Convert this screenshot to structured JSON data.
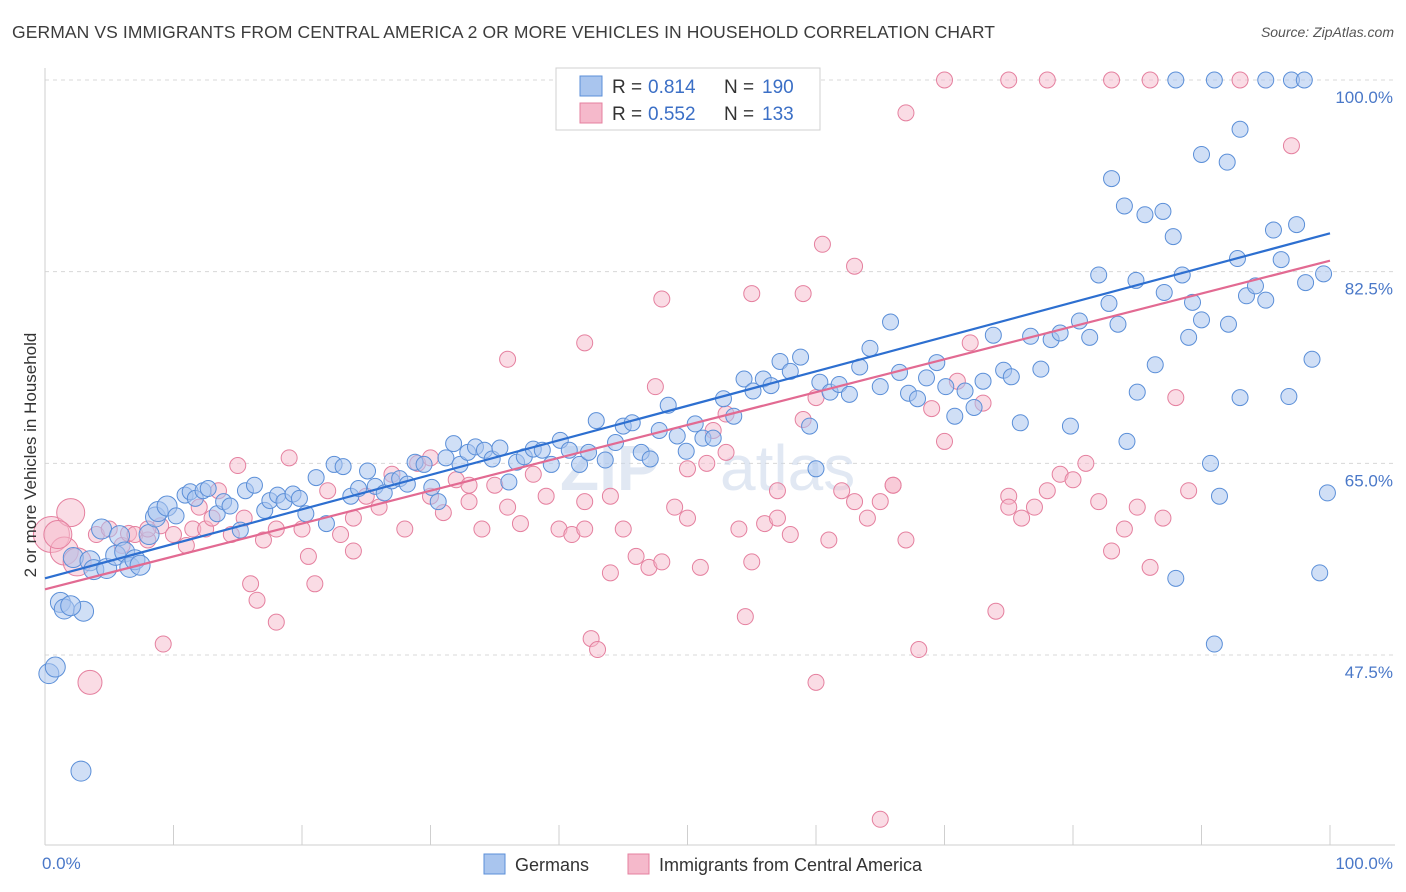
{
  "header": {
    "title": "GERMAN VS IMMIGRANTS FROM CENTRAL AMERICA 2 OR MORE VEHICLES IN HOUSEHOLD CORRELATION CHART",
    "source": "Source: ZipAtlas.com"
  },
  "watermark": {
    "zip": "ZIP",
    "atlas": "atlas"
  },
  "legend": {
    "r_label": "R =",
    "n_label": "N =",
    "rows": [
      {
        "r": "0.814",
        "n": "190"
      },
      {
        "r": "0.552",
        "n": "133"
      }
    ]
  },
  "colors": {
    "blue_fill": "#a9c5ee",
    "blue_stroke": "#5b8fd8",
    "blue_line": "#2d6fd0",
    "pink_fill": "#f5b9cb",
    "pink_stroke": "#e5809f",
    "pink_line": "#e26a92",
    "grid": "#d8d8d8",
    "tick_label": "#4a78c8"
  },
  "chart_data": {
    "type": "scatter",
    "title": "GERMAN VS IMMIGRANTS FROM CENTRAL AMERICA 2 OR MORE VEHICLES IN HOUSEHOLD CORRELATION CHART",
    "xlabel": "",
    "ylabel": "2 or more Vehicles in Household",
    "xlim": [
      0,
      100
    ],
    "ylim": [
      33,
      102
    ],
    "x_tick_labels": [
      "0.0%",
      "100.0%"
    ],
    "y_ticks": [
      47.5,
      65.0,
      82.5,
      100.0
    ],
    "y_tick_labels": [
      "47.5%",
      "65.0%",
      "82.5%",
      "100.0%"
    ],
    "grid": "horizontal dashed",
    "legend_position": "top-center",
    "series": [
      {
        "name": "Germans",
        "r": 0.814,
        "n": 190,
        "trend": {
          "x": [
            0,
            100
          ],
          "y": [
            54.5,
            86.0
          ]
        },
        "points": [
          [
            0.3,
            45.8
          ],
          [
            0.8,
            46.4
          ],
          [
            1.2,
            52.3
          ],
          [
            1.5,
            51.7
          ],
          [
            2.2,
            56.4
          ],
          [
            2.8,
            36.9
          ],
          [
            3.5,
            56.1
          ],
          [
            3.8,
            55.3
          ],
          [
            4.4,
            59.0
          ],
          [
            4.8,
            55.4
          ],
          [
            5.5,
            56.6
          ],
          [
            5.8,
            58.4
          ],
          [
            6.2,
            56.9
          ],
          [
            6.6,
            55.5
          ],
          [
            7.0,
            56.2
          ],
          [
            7.4,
            55.7
          ],
          [
            8.1,
            58.5
          ],
          [
            8.6,
            60.1
          ],
          [
            8.8,
            60.6
          ],
          [
            9.5,
            61.1
          ],
          [
            10.2,
            60.2
          ],
          [
            10.9,
            62.1
          ],
          [
            11.3,
            62.4
          ],
          [
            11.7,
            61.8
          ],
          [
            12.3,
            62.5
          ],
          [
            12.7,
            62.7
          ],
          [
            13.4,
            60.4
          ],
          [
            13.9,
            61.5
          ],
          [
            14.4,
            61.1
          ],
          [
            15.2,
            58.9
          ],
          [
            15.6,
            62.5
          ],
          [
            16.3,
            63.0
          ],
          [
            17.1,
            60.7
          ],
          [
            17.5,
            61.6
          ],
          [
            18.1,
            62.1
          ],
          [
            18.6,
            61.5
          ],
          [
            19.3,
            62.2
          ],
          [
            19.8,
            61.8
          ],
          [
            20.3,
            60.4
          ],
          [
            21.1,
            63.7
          ],
          [
            21.9,
            59.5
          ],
          [
            22.5,
            64.9
          ],
          [
            23.2,
            64.7
          ],
          [
            23.8,
            62.0
          ],
          [
            24.4,
            62.7
          ],
          [
            25.1,
            64.3
          ],
          [
            25.7,
            62.9
          ],
          [
            26.4,
            62.3
          ],
          [
            27.0,
            63.4
          ],
          [
            27.6,
            63.6
          ],
          [
            28.2,
            63.1
          ],
          [
            28.8,
            65.1
          ],
          [
            29.5,
            64.9
          ],
          [
            30.1,
            62.8
          ],
          [
            30.6,
            61.5
          ],
          [
            31.2,
            65.5
          ],
          [
            31.8,
            66.8
          ],
          [
            32.3,
            64.9
          ],
          [
            32.9,
            66.0
          ],
          [
            33.5,
            66.5
          ],
          [
            34.2,
            66.2
          ],
          [
            34.8,
            65.4
          ],
          [
            35.4,
            66.4
          ],
          [
            36.1,
            63.3
          ],
          [
            36.7,
            65.1
          ],
          [
            37.3,
            65.6
          ],
          [
            38.0,
            66.3
          ],
          [
            38.7,
            66.2
          ],
          [
            39.4,
            64.9
          ],
          [
            40.1,
            67.1
          ],
          [
            40.8,
            66.2
          ],
          [
            41.6,
            64.9
          ],
          [
            42.3,
            66.0
          ],
          [
            42.9,
            68.9
          ],
          [
            43.6,
            65.3
          ],
          [
            44.4,
            66.9
          ],
          [
            45.0,
            68.4
          ],
          [
            45.7,
            68.7
          ],
          [
            46.4,
            66.0
          ],
          [
            47.1,
            65.4
          ],
          [
            47.8,
            68.0
          ],
          [
            48.5,
            70.3
          ],
          [
            49.2,
            67.5
          ],
          [
            49.9,
            66.1
          ],
          [
            50.6,
            68.6
          ],
          [
            51.2,
            67.3
          ],
          [
            52.0,
            67.3
          ],
          [
            52.8,
            70.9
          ],
          [
            53.6,
            69.3
          ],
          [
            54.4,
            72.7
          ],
          [
            55.1,
            71.6
          ],
          [
            55.9,
            72.7
          ],
          [
            56.5,
            72.1
          ],
          [
            57.2,
            74.3
          ],
          [
            58.0,
            73.4
          ],
          [
            58.8,
            74.7
          ],
          [
            59.5,
            68.4
          ],
          [
            60.3,
            72.4
          ],
          [
            61.1,
            71.5
          ],
          [
            61.8,
            72.2
          ],
          [
            62.6,
            71.3
          ],
          [
            63.4,
            73.8
          ],
          [
            64.2,
            75.5
          ],
          [
            65.0,
            72.0
          ],
          [
            65.8,
            77.9
          ],
          [
            66.5,
            73.3
          ],
          [
            67.2,
            71.4
          ],
          [
            67.9,
            70.9
          ],
          [
            68.6,
            72.8
          ],
          [
            69.4,
            74.2
          ],
          [
            70.1,
            72.0
          ],
          [
            70.8,
            69.3
          ],
          [
            71.6,
            71.6
          ],
          [
            72.3,
            70.1
          ],
          [
            73.0,
            72.5
          ],
          [
            73.8,
            76.7
          ],
          [
            74.6,
            73.5
          ],
          [
            75.2,
            72.9
          ],
          [
            75.9,
            68.7
          ],
          [
            76.7,
            76.6
          ],
          [
            77.5,
            73.6
          ],
          [
            78.3,
            76.3
          ],
          [
            79.0,
            76.9
          ],
          [
            79.8,
            68.4
          ],
          [
            80.5,
            78.0
          ],
          [
            81.3,
            76.5
          ],
          [
            82.0,
            82.2
          ],
          [
            82.8,
            79.6
          ],
          [
            83.5,
            77.7
          ],
          [
            84.2,
            67.0
          ],
          [
            84.9,
            81.7
          ],
          [
            85.6,
            87.7
          ],
          [
            86.4,
            74.0
          ],
          [
            87.1,
            80.6
          ],
          [
            87.8,
            85.7
          ],
          [
            88.5,
            82.2
          ],
          [
            89.3,
            79.7
          ],
          [
            90.0,
            78.1
          ],
          [
            90.7,
            65.0
          ],
          [
            91.4,
            62.0
          ],
          [
            92.1,
            77.7
          ],
          [
            92.8,
            83.7
          ],
          [
            93.5,
            80.3
          ],
          [
            94.2,
            81.2
          ],
          [
            95.0,
            79.9
          ],
          [
            95.6,
            86.3
          ],
          [
            96.2,
            83.6
          ],
          [
            96.8,
            71.1
          ],
          [
            97.4,
            86.8
          ],
          [
            98.1,
            81.5
          ],
          [
            98.6,
            74.5
          ],
          [
            99.2,
            55.0
          ],
          [
            99.5,
            82.3
          ],
          [
            99.8,
            62.3
          ]
        ],
        "_comment": "points approximate; see script for canonical list"
      },
      {
        "name": "Immigrants from Central America",
        "r": 0.552,
        "n": 133,
        "trend": {
          "x": [
            0,
            100
          ],
          "y": [
            53.5,
            83.5
          ]
        }
      }
    ]
  },
  "bottom_legend": {
    "items": [
      "Germans",
      "Immigrants from Central America"
    ]
  }
}
